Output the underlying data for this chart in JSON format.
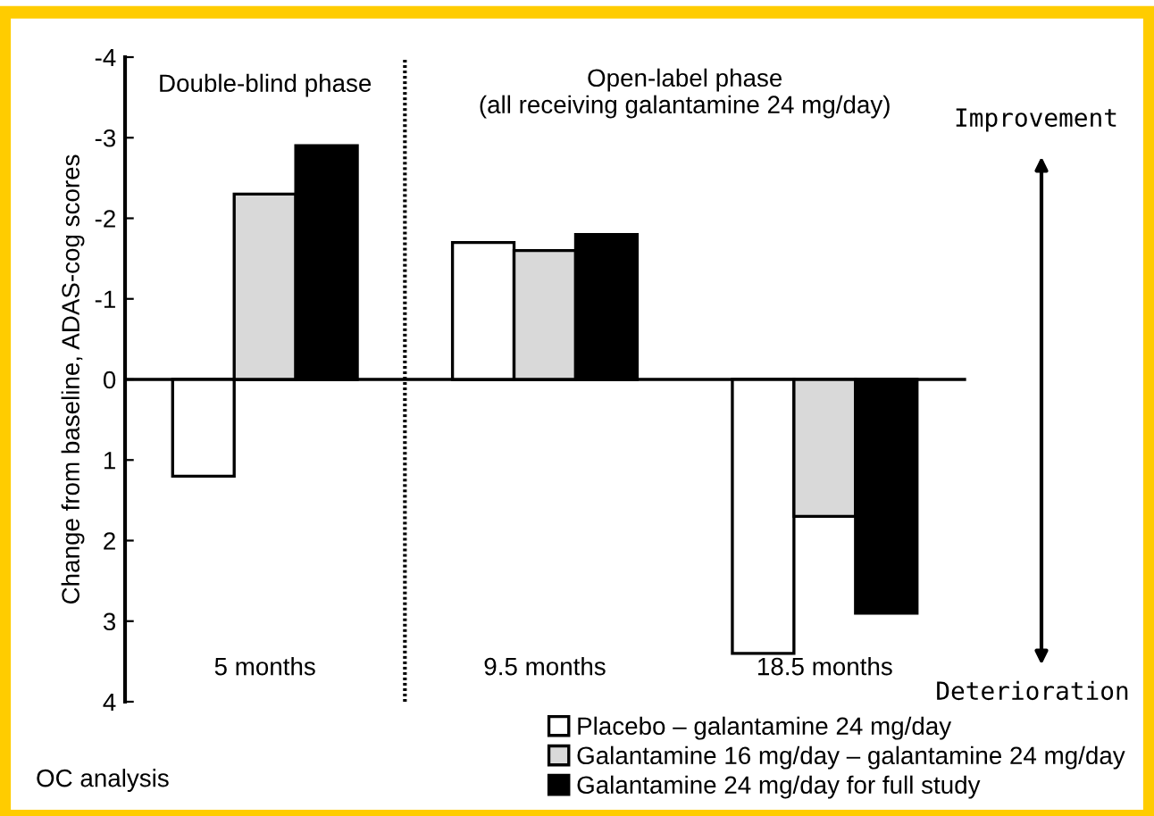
{
  "chart_data": {
    "type": "bar",
    "ylabel": "Change from baseline, ADAS-cog scores",
    "categories": [
      "5 months",
      "9.5 months",
      "18.5 months"
    ],
    "series": [
      {
        "name": "Placebo – galantamine 24 mg/day",
        "color": "#ffffff",
        "values": [
          1.2,
          -1.7,
          3.4
        ]
      },
      {
        "name": "Galantamine 16 mg/day – galantamine 24 mg/day",
        "color": "#d9d9d9",
        "values": [
          -2.3,
          -1.6,
          1.7
        ]
      },
      {
        "name": "Galantamine 24 mg/day for full study",
        "color": "#000000",
        "values": [
          -2.9,
          -1.8,
          2.9
        ]
      }
    ],
    "ylim": [
      4,
      -4
    ],
    "yticks": [
      -4,
      -3,
      -2,
      -1,
      0,
      1,
      2,
      3,
      4
    ],
    "annotations": [
      "Double-blind phase",
      "Open-label phase\n(all receiving galantamine 24 mg/day)",
      "Improvement",
      "Deterioration",
      "OC analysis"
    ],
    "legend": "bottom right"
  }
}
